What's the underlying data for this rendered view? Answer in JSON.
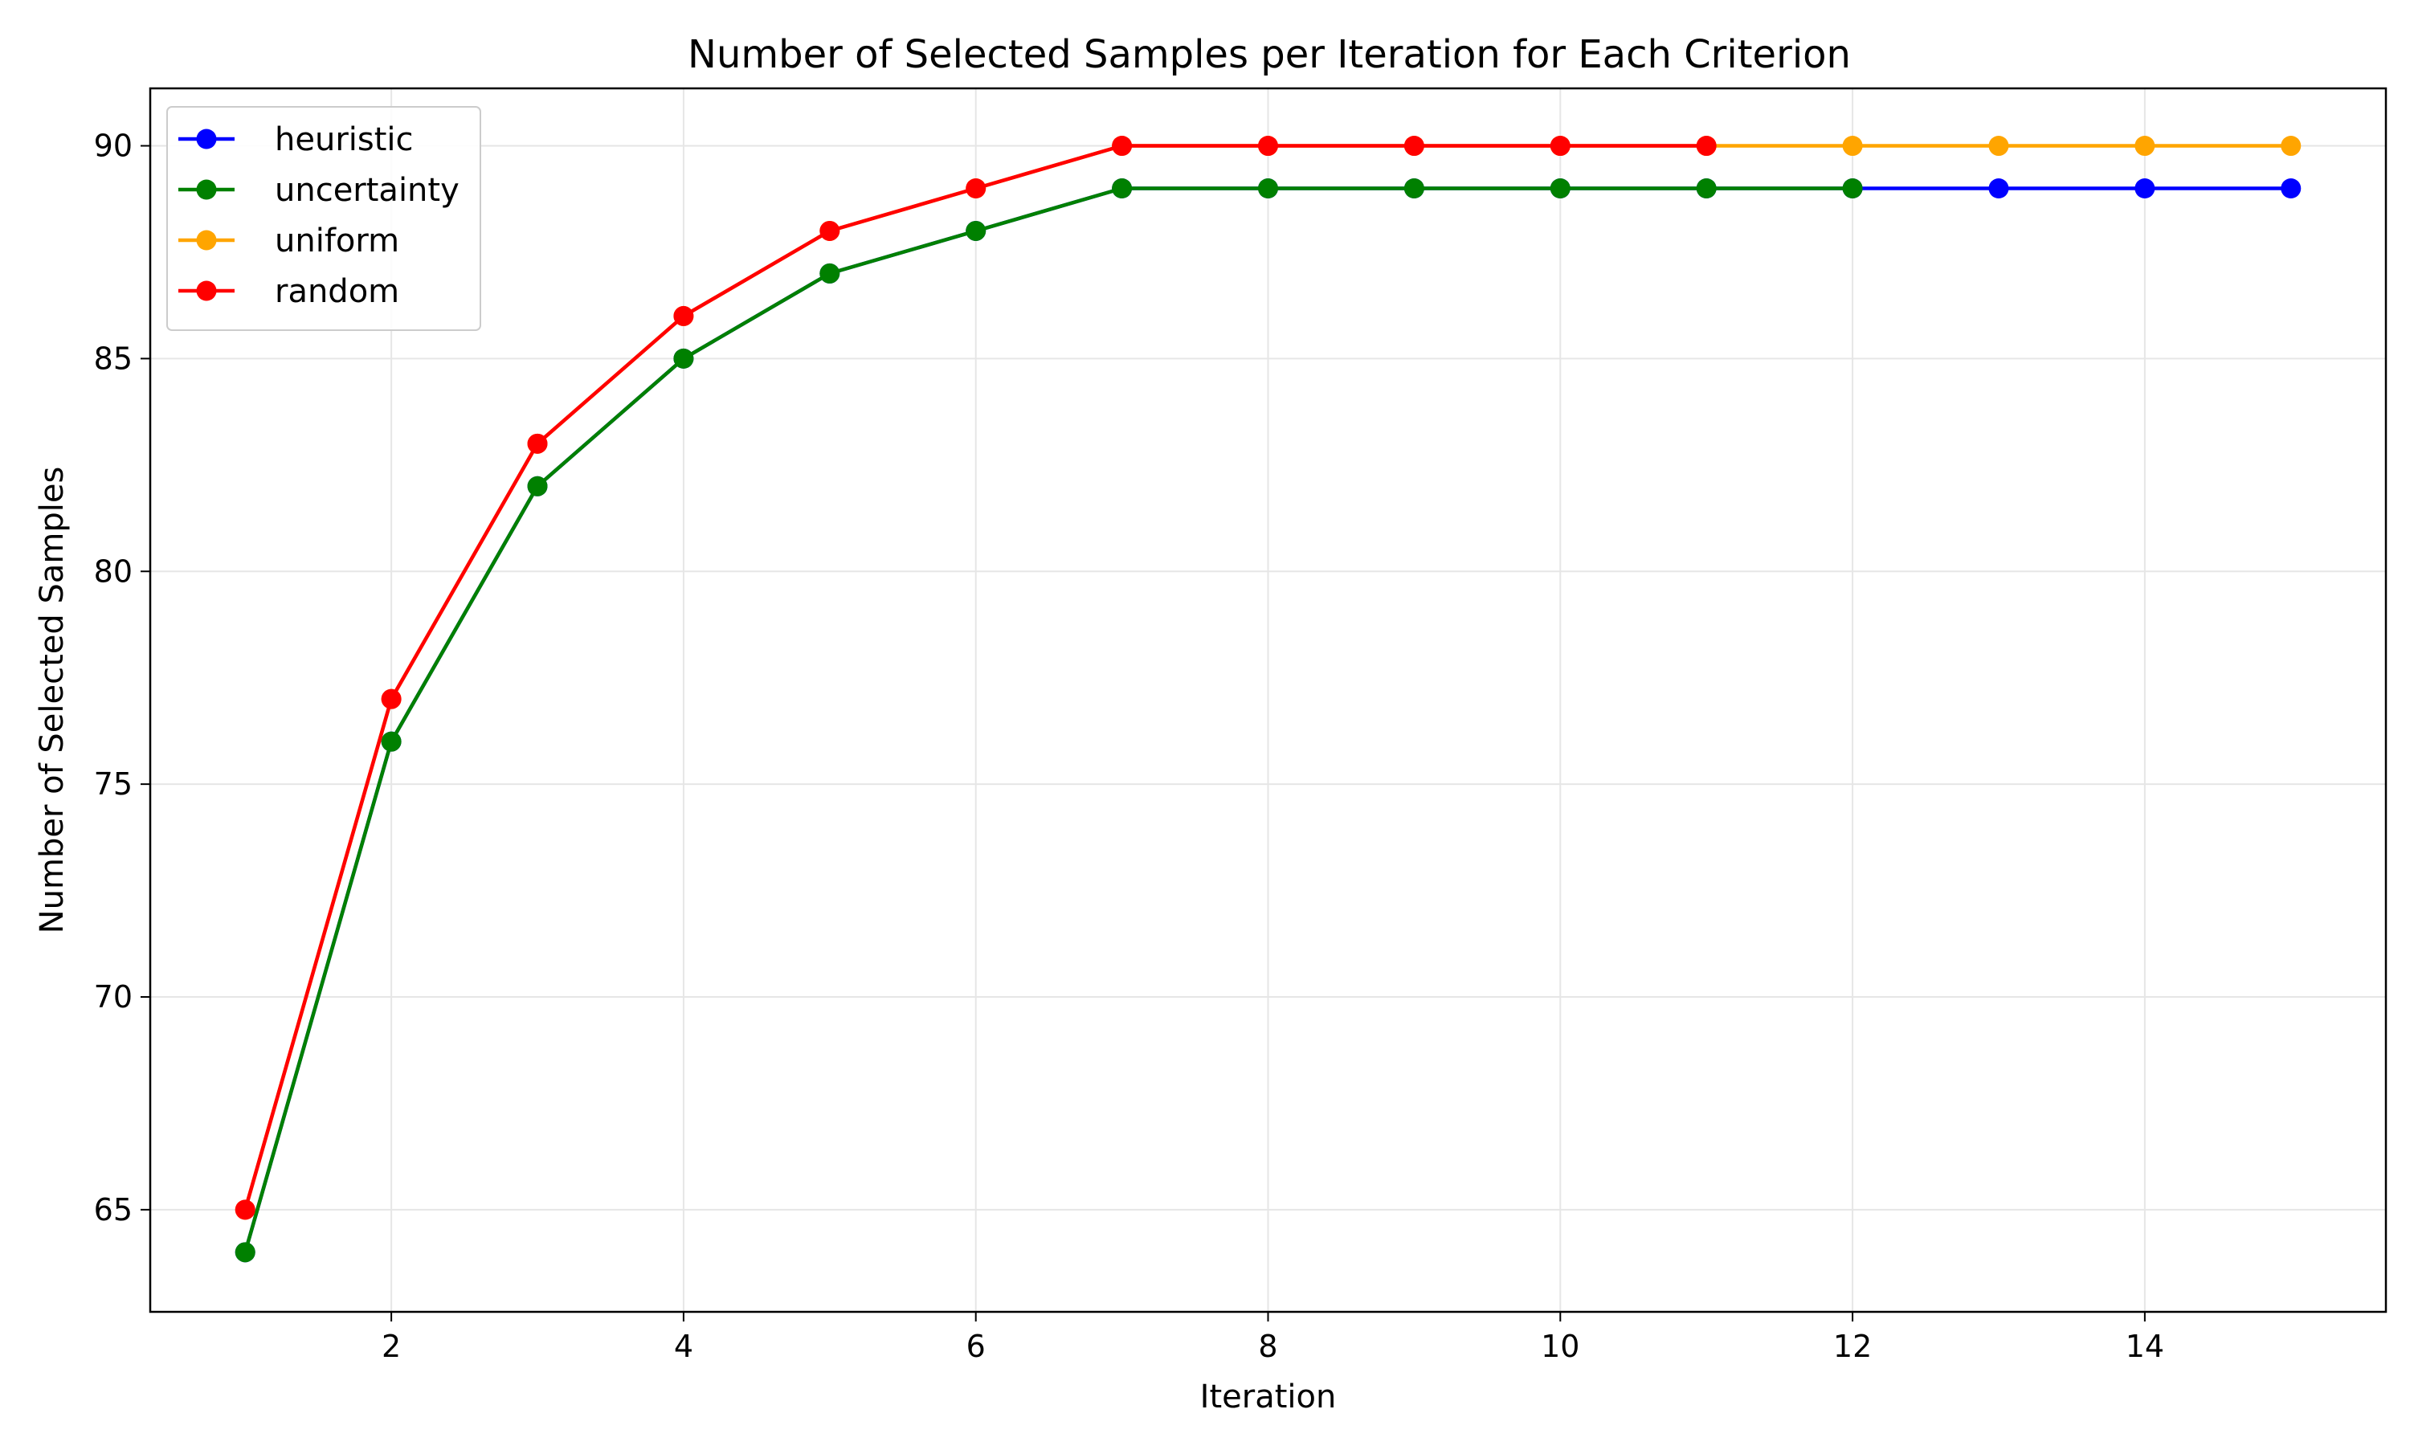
{
  "chart_data": {
    "type": "line",
    "title": "Number of Selected Samples per Iteration for Each Criterion",
    "xlabel": "Iteration",
    "ylabel": "Number of Selected Samples",
    "xlim": [
      0.35,
      15.65
    ],
    "ylim": [
      62.6,
      91.35
    ],
    "xticks": [
      2,
      4,
      6,
      8,
      10,
      12,
      14
    ],
    "yticks": [
      65,
      70,
      75,
      80,
      85,
      90
    ],
    "grid": true,
    "legend_position": "top-left",
    "series": [
      {
        "name": "heuristic",
        "color": "#0000ff",
        "x": [
          1,
          2,
          3,
          4,
          5,
          6,
          7,
          8,
          9,
          10,
          11,
          12,
          13,
          14,
          15
        ],
        "y": [
          64,
          76,
          82,
          85,
          87,
          88,
          89,
          89,
          89,
          89,
          89,
          89,
          89,
          89,
          89
        ]
      },
      {
        "name": "uncertainty",
        "color": "#008000",
        "x": [
          1,
          2,
          3,
          4,
          5,
          6,
          7,
          8,
          9,
          10,
          11,
          12
        ],
        "y": [
          64,
          76,
          82,
          85,
          87,
          88,
          89,
          89,
          89,
          89,
          89,
          89
        ]
      },
      {
        "name": "uniform",
        "color": "#ffa500",
        "x": [
          1,
          2,
          3,
          4,
          5,
          6,
          7,
          8,
          9,
          10,
          11,
          12,
          13,
          14,
          15
        ],
        "y": [
          65,
          77,
          83,
          86,
          88,
          89,
          90,
          90,
          90,
          90,
          90,
          90,
          90,
          90,
          90
        ]
      },
      {
        "name": "random",
        "color": "#ff0000",
        "x": [
          1,
          2,
          3,
          4,
          5,
          6,
          7,
          8,
          9,
          10,
          11
        ],
        "y": [
          65,
          77,
          83,
          86,
          88,
          89,
          90,
          90,
          90,
          90,
          90
        ]
      }
    ]
  }
}
